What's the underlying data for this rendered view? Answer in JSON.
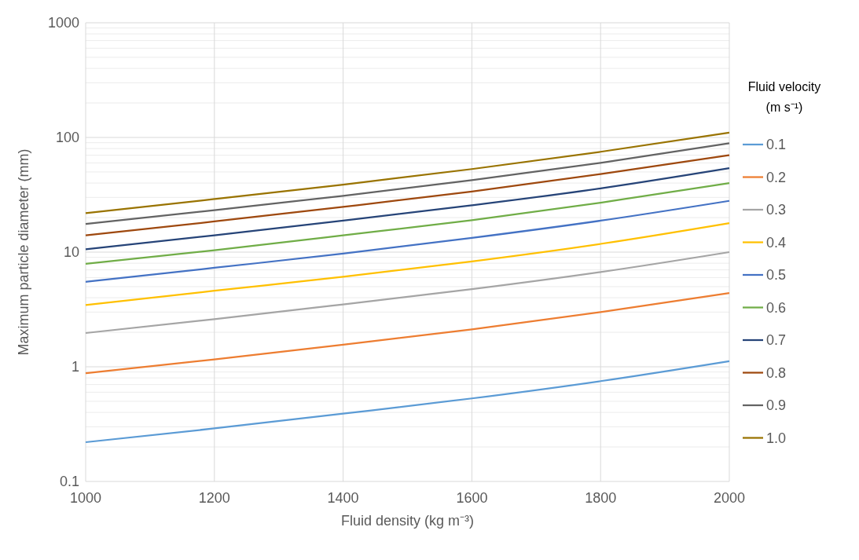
{
  "chart_data": {
    "type": "line",
    "xlabel": "Fluid density (kg m⁻³)",
    "ylabel": "Maximum particle diameter (mm)",
    "legend_title": "Fluid velocity (m s⁻¹)",
    "x": [
      1000,
      1200,
      1400,
      1600,
      1800,
      2000
    ],
    "xlim": [
      1000,
      2000
    ],
    "xticks": [
      1000,
      1200,
      1400,
      1600,
      1800,
      2000
    ],
    "ylim": [
      0.1,
      1000
    ],
    "yticks": [
      0.1,
      1,
      10,
      100,
      1000
    ],
    "log": "y",
    "grid": true,
    "legend": "right",
    "marker": "none",
    "series": [
      {
        "name": "0.1",
        "color": "#5b9bd5",
        "values": [
          0.22,
          0.29,
          0.39,
          0.53,
          0.75,
          1.12
        ]
      },
      {
        "name": "0.2",
        "color": "#ed7d31",
        "values": [
          0.88,
          1.16,
          1.56,
          2.12,
          3.0,
          4.4
        ]
      },
      {
        "name": "0.3",
        "color": "#a5a5a5",
        "values": [
          1.97,
          2.6,
          3.5,
          4.75,
          6.7,
          10
        ]
      },
      {
        "name": "0.4",
        "color": "#ffc000",
        "values": [
          3.46,
          4.6,
          6.1,
          8.3,
          11.8,
          17.9
        ]
      },
      {
        "name": "0.5",
        "color": "#4472c4",
        "values": [
          5.5,
          7.3,
          9.7,
          13.3,
          18.8,
          28
        ]
      },
      {
        "name": "0.6",
        "color": "#70ad47",
        "values": [
          7.9,
          10.4,
          14,
          19,
          27,
          40
        ]
      },
      {
        "name": "0.7",
        "color": "#264478",
        "values": [
          10.6,
          14,
          18.8,
          25.6,
          36,
          54
        ]
      },
      {
        "name": "0.8",
        "color": "#9e480e",
        "values": [
          14,
          18.5,
          24.8,
          33.8,
          48,
          70
        ]
      },
      {
        "name": "0.9",
        "color": "#636363",
        "values": [
          17.6,
          23.2,
          31,
          42.4,
          60,
          89
        ]
      },
      {
        "name": "1.0",
        "color": "#997300",
        "values": [
          21.9,
          29,
          38.8,
          53,
          75,
          110
        ]
      }
    ]
  }
}
